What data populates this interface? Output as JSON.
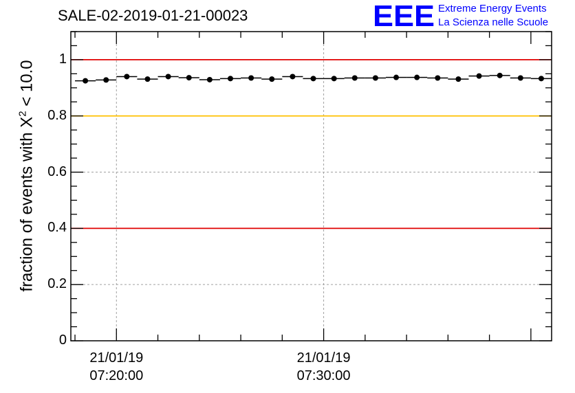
{
  "title": "SALE-02-2019-01-21-00023",
  "logo": {
    "mark": "EEE",
    "line1": "Extreme Energy Events",
    "line2": "La Scienza nelle Scuole",
    "color": "#0000ff"
  },
  "chart_data": {
    "type": "scatter",
    "title": "SALE-02-2019-01-21-00023",
    "ylabel_prefix": "fraction of events with ",
    "ylabel_symbol": "X",
    "ylabel_sup": "2",
    "ylabel_suffix": " < 10.0",
    "ylim": [
      0,
      1.1
    ],
    "yticks": [
      0,
      0.2,
      0.4,
      0.6,
      0.8,
      1
    ],
    "ytick_labels": [
      "0",
      "0.2",
      "0.4",
      "0.6",
      "0.8",
      "1"
    ],
    "xlim_minutes": [
      -12.2,
      11.0
    ],
    "xticks_minutes": [
      -10,
      0
    ],
    "xtick_labels": [
      {
        "date": "21/01/19",
        "time": "07:20:00"
      },
      {
        "date": "21/01/19",
        "time": "07:30:00"
      }
    ],
    "bin_width_minutes": 1,
    "series": [
      {
        "name": "fraction",
        "x_minutes": [
          -11.5,
          -10.5,
          -9.5,
          -8.5,
          -7.5,
          -6.5,
          -5.5,
          -4.5,
          -3.5,
          -2.5,
          -1.5,
          -0.5,
          0.5,
          1.5,
          2.5,
          3.5,
          4.5,
          5.5,
          6.5,
          7.5,
          8.5,
          9.5,
          10.5
        ],
        "values": [
          0.925,
          0.928,
          0.94,
          0.931,
          0.94,
          0.936,
          0.929,
          0.933,
          0.935,
          0.931,
          0.94,
          0.933,
          0.933,
          0.935,
          0.935,
          0.937,
          0.937,
          0.935,
          0.931,
          0.942,
          0.944,
          0.935,
          0.933
        ],
        "color": "#000000"
      }
    ],
    "reference_lines": [
      {
        "y": 1.0,
        "color": "#e00000"
      },
      {
        "y": 0.8,
        "color": "#ffc000"
      },
      {
        "y": 0.4,
        "color": "#e00000"
      }
    ],
    "grid": true
  }
}
